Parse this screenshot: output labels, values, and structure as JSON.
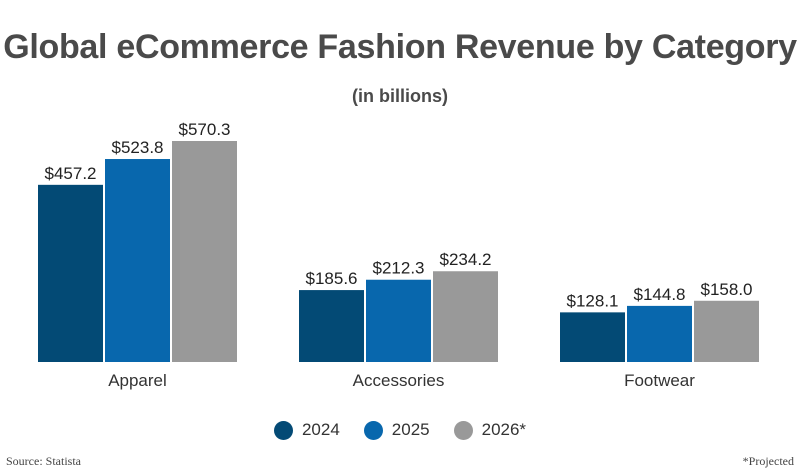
{
  "chart_data": {
    "type": "bar",
    "title": "Global eCommerce Fashion Revenue by Category",
    "subtitle": "(in billions)",
    "categories": [
      "Apparel",
      "Accessories",
      "Footwear"
    ],
    "series": [
      {
        "name": "2024",
        "values": [
          457.2,
          185.6,
          128.1
        ],
        "color": "#034a75",
        "labels": [
          "$457.2",
          "$185.6",
          "$128.1"
        ]
      },
      {
        "name": "2025",
        "values": [
          523.8,
          212.3,
          144.8
        ],
        "color": "#0867ad",
        "labels": [
          "$523.8",
          "$212.3",
          "$144.8"
        ]
      },
      {
        "name": "2026*",
        "values": [
          570.3,
          234.2,
          158.0
        ],
        "color": "#999999",
        "labels": [
          "$570.3",
          "$234.2",
          "$158.0"
        ]
      }
    ],
    "ylim": [
      0,
      570.3
    ],
    "grid": false,
    "legend_position": "bottom"
  },
  "footer": {
    "source": "Source: Statista",
    "note": "*Projected"
  }
}
